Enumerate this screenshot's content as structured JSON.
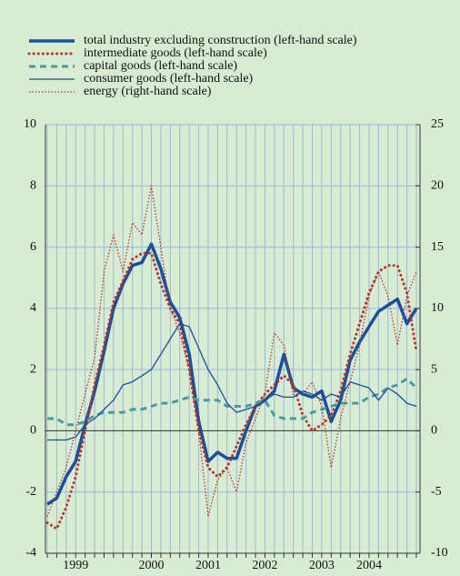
{
  "chart_data": {
    "type": "line",
    "categories": [
      null,
      null,
      null,
      "1999",
      null,
      null,
      null,
      null,
      null,
      null,
      null,
      "2000",
      null,
      null,
      null,
      null,
      null,
      "2001",
      null,
      null,
      null,
      null,
      null,
      "2002",
      null,
      null,
      null,
      null,
      null,
      "2003",
      null,
      null,
      null,
      null,
      "2004",
      null,
      null,
      null,
      null,
      null
    ],
    "ylim": [
      -4,
      10
    ],
    "yticks": [
      -4,
      -2,
      0,
      2,
      4,
      6,
      8,
      10
    ],
    "y2lim": [
      -10,
      25
    ],
    "y2ticks": [
      -10,
      -5,
      0,
      5,
      10,
      15,
      20,
      25
    ],
    "grid": true,
    "series": [
      {
        "name": "total industry excluding construction (left-hand scale)",
        "color": "#1a4f9c",
        "style": "solid-thick",
        "values": [
          -2.4,
          -2.2,
          -1.5,
          -1.0,
          0.2,
          1.3,
          2.6,
          4.0,
          4.8,
          5.4,
          5.5,
          6.1,
          5.3,
          4.2,
          3.7,
          2.5,
          0.3,
          -1.0,
          -0.7,
          -0.9,
          -0.9,
          0.0,
          0.8,
          1.0,
          1.3,
          2.5,
          1.4,
          1.2,
          1.1,
          1.3,
          0.3,
          1.0,
          2.3,
          2.9,
          3.4,
          3.9,
          4.1,
          4.3,
          3.5,
          4.0
        ]
      },
      {
        "name": "intermediate goods (left-hand scale)",
        "color": "#b8352a",
        "style": "dotted-thick",
        "values": [
          -3.0,
          -3.2,
          -2.5,
          -1.5,
          0.0,
          1.5,
          2.8,
          4.2,
          4.9,
          5.6,
          5.8,
          5.8,
          4.8,
          4.0,
          3.5,
          2.0,
          0.0,
          -1.2,
          -1.5,
          -1.2,
          -0.5,
          0.2,
          0.8,
          1.2,
          1.5,
          1.8,
          1.5,
          0.5,
          0.0,
          0.2,
          0.5,
          1.3,
          2.5,
          3.5,
          4.5,
          5.2,
          5.4,
          5.4,
          4.5,
          2.6
        ]
      },
      {
        "name": "capital goods (left-hand scale)",
        "color": "#4a9a9e",
        "style": "dashed-thick",
        "values": [
          0.4,
          0.4,
          0.2,
          0.2,
          0.3,
          0.5,
          0.6,
          0.6,
          0.6,
          0.7,
          0.7,
          0.8,
          0.9,
          0.9,
          1.0,
          1.1,
          1.0,
          1.0,
          1.0,
          0.8,
          0.8,
          0.8,
          0.9,
          1.0,
          0.5,
          0.4,
          0.4,
          0.4,
          0.6,
          0.7,
          0.8,
          0.9,
          0.9,
          0.9,
          1.1,
          1.2,
          1.4,
          1.5,
          1.7,
          1.4
        ]
      },
      {
        "name": "consumer goods (left-hand scale)",
        "color": "#1a4f9c",
        "style": "solid-thin",
        "values": [
          -0.3,
          -0.3,
          -0.3,
          -0.2,
          0.2,
          0.4,
          0.7,
          1.0,
          1.5,
          1.6,
          1.8,
          2.0,
          2.5,
          3.0,
          3.5,
          3.4,
          2.7,
          2.0,
          1.5,
          0.9,
          0.6,
          0.7,
          0.8,
          1.0,
          1.2,
          1.1,
          1.1,
          1.3,
          1.2,
          1.0,
          1.2,
          1.1,
          1.6,
          1.5,
          1.4,
          1.0,
          1.4,
          1.2,
          0.9,
          0.8
        ]
      },
      {
        "name": "energy (right-hand scale)",
        "color": "#b8352a",
        "style": "dotted-thin",
        "axis": "y2",
        "values": [
          -7,
          -5,
          -3,
          0,
          3,
          6,
          13,
          16,
          13,
          17,
          16,
          20,
          15,
          10,
          8,
          5,
          0,
          -7,
          -4,
          -3,
          -5,
          -1,
          1,
          3,
          8,
          7,
          3,
          3,
          4,
          2,
          -3,
          1,
          4,
          7,
          11,
          13,
          11,
          7,
          11,
          13
        ]
      }
    ]
  }
}
